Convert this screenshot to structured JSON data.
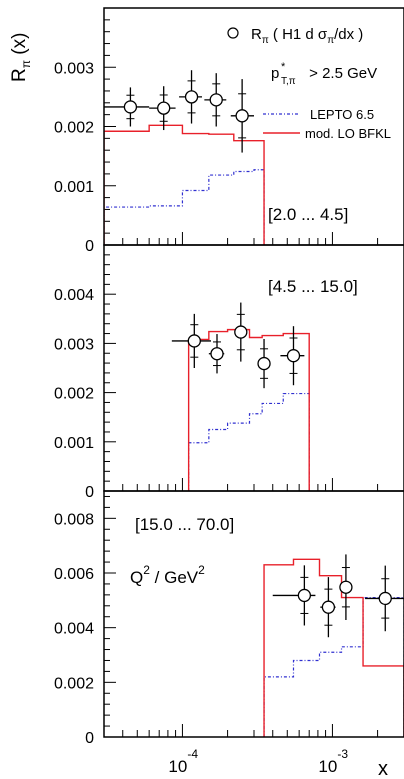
{
  "chart_data": {
    "type": "scatter",
    "x_axis": {
      "label": "x",
      "scale": "log",
      "range": [
        3e-05,
        0.003
      ],
      "tick_labels": [
        {
          "value": 0.0001,
          "base": "10",
          "exponent": "-4"
        },
        {
          "value": 0.001,
          "base": "10",
          "exponent": "-3"
        }
      ]
    },
    "y_axis_label": {
      "main": "R",
      "sub": "π",
      "suffix": " (x)"
    },
    "legend": {
      "data": {
        "text": "R",
        "sub": "π",
        "rest": " ( H1 d σ",
        "sub2": "π",
        "rest2": "/dx )"
      },
      "lepto": {
        "text": "LEPTO 6.5",
        "color": "#3030d0"
      },
      "bfkl": {
        "text": "mod. LO BFKL",
        "color": "#e8202a"
      }
    },
    "cut": {
      "main": "p",
      "sup": "*",
      "sub": "T,π",
      "rest": " > 2.5 GeV"
    },
    "q2_label": {
      "main": "Q",
      "sup": "2",
      "rest": "  / GeV",
      "sup2": "2"
    },
    "panels": [
      {
        "q2_range": "[2.0 ... 4.5]",
        "ylim": [
          0,
          0.004
        ],
        "yticks": [
          0,
          0.001,
          0.002,
          0.003
        ],
        "ytick_labels": [
          "0",
          "0.001",
          "0.002",
          "0.003"
        ],
        "data": [
          {
            "x": 4.5e-05,
            "y": 0.00233,
            "yerr": 0.00033,
            "xerr_lo": 1.5e-05,
            "xerr_hi": 1.5e-05
          },
          {
            "x": 7.5e-05,
            "y": 0.00231,
            "yerr": 0.00037,
            "xerr_lo": 1.5e-05,
            "xerr_hi": 1.5e-05
          },
          {
            "x": 0.000115,
            "y": 0.0025,
            "yerr": 0.00045,
            "xerr_lo": 2e-05,
            "xerr_hi": 2e-05
          },
          {
            "x": 0.000168,
            "y": 0.00245,
            "yerr": 0.00045,
            "xerr_lo": 2.8e-05,
            "xerr_hi": 2.8e-05
          },
          {
            "x": 0.00025,
            "y": 0.00218,
            "yerr": 0.00062,
            "xerr_lo": 4e-05,
            "xerr_hi": 5e-05
          }
        ],
        "lepto": {
          "edges": [
            3e-05,
            6e-05,
            0.0001,
            0.00015,
            0.00022,
            0.0003,
            0.00035
          ],
          "values": [
            0.00064,
            0.00066,
            0.00092,
            0.00118,
            0.00124,
            0.00127
          ]
        },
        "bfkl": {
          "edges": [
            3e-05,
            6e-05,
            0.0001,
            0.00015,
            0.00022,
            0.0003,
            0.00035
          ],
          "values": [
            0.00192,
            0.00202,
            0.00188,
            0.00187,
            0.00176,
            0.00176
          ]
        }
      },
      {
        "q2_range": "[4.5 ... 15.0]",
        "ylim": [
          0,
          0.005
        ],
        "yticks": [
          0,
          0.001,
          0.002,
          0.003,
          0.004
        ],
        "ytick_labels": [
          "0",
          "0.001",
          "0.002",
          "0.003",
          "0.004"
        ],
        "data": [
          {
            "x": 0.00012,
            "y": 0.00305,
            "yerr": 0.00055,
            "xerr_lo": 3.5e-05,
            "xerr_hi": 3.5e-05
          },
          {
            "x": 0.00017,
            "y": 0.00279,
            "yerr": 0.0004,
            "xerr_lo": 2e-05,
            "xerr_hi": 2e-05
          },
          {
            "x": 0.000245,
            "y": 0.00323,
            "yerr": 0.0006,
            "xerr_lo": 2e-05,
            "xerr_hi": 2e-05
          },
          {
            "x": 0.00035,
            "y": 0.00259,
            "yerr": 0.0005,
            "xerr_lo": 2e-05,
            "xerr_hi": 2e-05
          },
          {
            "x": 0.00055,
            "y": 0.00275,
            "yerr": 0.0006,
            "xerr_lo": 0.0001,
            "xerr_hi": 0.0001
          }
        ],
        "lepto": {
          "edges": [
            0.00011,
            0.00015,
            0.0002,
            0.00028,
            0.00034,
            0.00047,
            0.0007
          ],
          "values": [
            0.00098,
            0.00125,
            0.00138,
            0.00157,
            0.00178,
            0.00198
          ]
        },
        "bfkl": {
          "edges": [
            0.00011,
            0.00015,
            0.0002,
            0.00028,
            0.00034,
            0.00047,
            0.0007
          ],
          "values": [
            0.00308,
            0.00324,
            0.00328,
            0.00312,
            0.00316,
            0.0032
          ]
        }
      },
      {
        "q2_range": "[15.0 ... 70.0]",
        "ylim": [
          0,
          0.009
        ],
        "yticks": [
          0,
          0.002,
          0.004,
          0.006,
          0.008
        ],
        "ytick_labels": [
          "0",
          "0.002",
          "0.004",
          "0.006",
          "0.008"
        ],
        "data": [
          {
            "x": 0.00065,
            "y": 0.00518,
            "yerr": 0.0011,
            "xerr_lo": 0.00025,
            "xerr_hi": 0.00012
          },
          {
            "x": 0.00094,
            "y": 0.00475,
            "yerr": 0.0011,
            "xerr_lo": 0.00011,
            "xerr_hi": 0.00011
          },
          {
            "x": 0.00123,
            "y": 0.00548,
            "yerr": 0.0012,
            "xerr_lo": 0.0001,
            "xerr_hi": 0.0001
          },
          {
            "x": 0.00225,
            "y": 0.00507,
            "yerr": 0.0012,
            "xerr_lo": 0.0006,
            "xerr_hi": 0.0009
          }
        ],
        "lepto": {
          "edges": [
            0.00035,
            0.00055,
            0.00082,
            0.00115,
            0.0016,
            0.003
          ],
          "values": [
            0.0022,
            0.0028,
            0.0031,
            0.0033,
            0.0051
          ]
        },
        "bfkl": {
          "edges": [
            0.00035,
            0.00055,
            0.00082,
            0.00115,
            0.0016,
            0.003
          ],
          "values": [
            0.0063,
            0.0065,
            0.0059,
            0.0051,
            0.0026
          ]
        }
      }
    ]
  }
}
